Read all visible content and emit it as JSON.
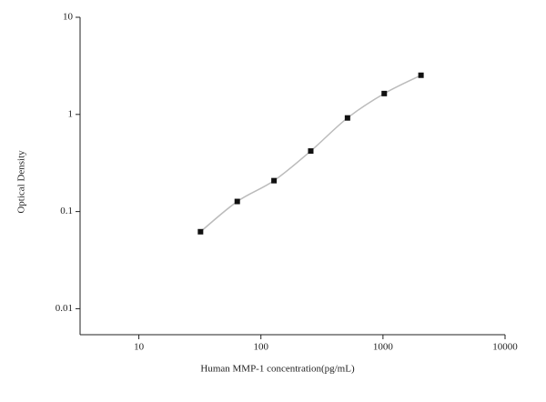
{
  "chart_data": {
    "type": "scatter",
    "x_label": "Human MMP-1 concentration(pg/mL)",
    "y_label": "Optical Density",
    "x": [
      32,
      64,
      128,
      256,
      512,
      1024,
      2048
    ],
    "series": [
      {
        "color": "#111111",
        "values": [
          0.062,
          0.127,
          0.208,
          0.42,
          0.92,
          1.64,
          2.53
        ]
      }
    ],
    "fit_curve": true,
    "curve_color": "#bbbbbb",
    "xscale": "log",
    "yscale": "log",
    "xlim": [
      3.3,
      10000
    ],
    "ylim": [
      0.0054,
      10
    ],
    "xticks": [
      10,
      100,
      1000,
      10000
    ],
    "yticks": [
      0.01,
      0.1,
      1,
      10
    ]
  }
}
